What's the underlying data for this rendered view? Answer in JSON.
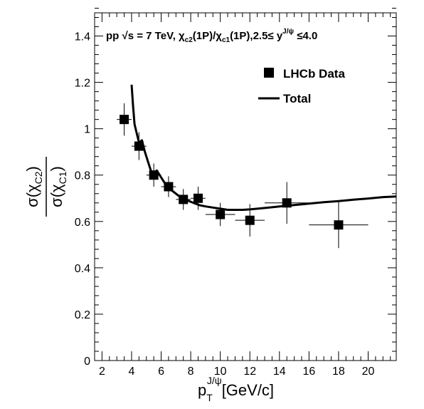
{
  "chart_data": {
    "type": "scatter",
    "title": "pp  √s = 7 TeV, χc2(1P)/χc1(1P),2.5≤ yJ/ψ  ≤4.0",
    "title_parts": {
      "prefix": "pp  √s = 7 TeV, χ",
      "sub1": "c2",
      "mid1": "(1P)/χ",
      "sub2": "c1",
      "mid2": "(1P),2.5≤ y",
      "sup": "J/ψ",
      "suffix": "  ≤4.0"
    },
    "xlabel": {
      "main": "p",
      "sub": "T",
      "sup": "J/ψ",
      "unit": "[GeV/c]"
    },
    "ylabel": {
      "numerator": {
        "pre": "σ(χ",
        "sub": "C2",
        "post": ")"
      },
      "denominator": {
        "pre": "σ(χ",
        "sub": "C1",
        "post": ")"
      }
    },
    "xlim": [
      1.5,
      21.9
    ],
    "ylim": [
      0,
      1.5
    ],
    "xticks": [
      2,
      4,
      6,
      8,
      10,
      12,
      14,
      16,
      18,
      20
    ],
    "yticks": [
      0,
      0.2,
      0.4,
      0.6,
      0.8,
      1,
      1.2,
      1.4
    ],
    "ytick_labels": [
      "0",
      "0.2",
      "0.4",
      "0.6",
      "0.8",
      "1",
      "1.2",
      "1.4"
    ],
    "legend": {
      "position": "top-right",
      "entries": [
        {
          "label": "LHCb Data",
          "kind": "marker"
        },
        {
          "label": "Total",
          "kind": "line"
        }
      ]
    },
    "series": [
      {
        "name": "LHCb Data",
        "kind": "points",
        "points": [
          {
            "x": 3.5,
            "y": 1.04,
            "xerr": 0.5,
            "yerr": 0.07
          },
          {
            "x": 4.5,
            "y": 0.925,
            "xerr": 0.5,
            "yerr": 0.06
          },
          {
            "x": 5.5,
            "y": 0.8,
            "xerr": 0.5,
            "yerr": 0.05
          },
          {
            "x": 6.5,
            "y": 0.75,
            "xerr": 0.5,
            "yerr": 0.045
          },
          {
            "x": 7.5,
            "y": 0.695,
            "xerr": 0.5,
            "yerr": 0.045
          },
          {
            "x": 8.5,
            "y": 0.7,
            "xerr": 0.5,
            "yerr": 0.05
          },
          {
            "x": 10.0,
            "y": 0.63,
            "xerr": 1.0,
            "yerr": 0.05
          },
          {
            "x": 12.0,
            "y": 0.605,
            "xerr": 1.0,
            "yerr": 0.07
          },
          {
            "x": 14.5,
            "y": 0.68,
            "xerr": 1.5,
            "yerr": 0.09
          },
          {
            "x": 18.0,
            "y": 0.585,
            "xerr": 2.0,
            "yerr": 0.1
          }
        ]
      },
      {
        "name": "Total",
        "kind": "line",
        "x": [
          4.0,
          4.1,
          4.2,
          4.35,
          4.5,
          4.7,
          4.9,
          5.1,
          5.3,
          5.5,
          5.7,
          6.0,
          6.3,
          6.6,
          7.0,
          7.4,
          7.8,
          8.2,
          8.6,
          9.0,
          9.5,
          10.0,
          10.5,
          11.0,
          11.5,
          12.0,
          13.0,
          14.0,
          15.0,
          16.0,
          17.0,
          18.0,
          19.0,
          20.0,
          21.0,
          21.9
        ],
        "y": [
          1.19,
          1.1,
          1.02,
          0.98,
          0.94,
          0.95,
          0.9,
          0.86,
          0.82,
          0.8,
          0.82,
          0.79,
          0.76,
          0.74,
          0.72,
          0.7,
          0.69,
          0.68,
          0.67,
          0.665,
          0.66,
          0.655,
          0.65,
          0.65,
          0.65,
          0.652,
          0.658,
          0.665,
          0.671,
          0.677,
          0.683,
          0.688,
          0.694,
          0.699,
          0.705,
          0.708
        ]
      }
    ]
  }
}
